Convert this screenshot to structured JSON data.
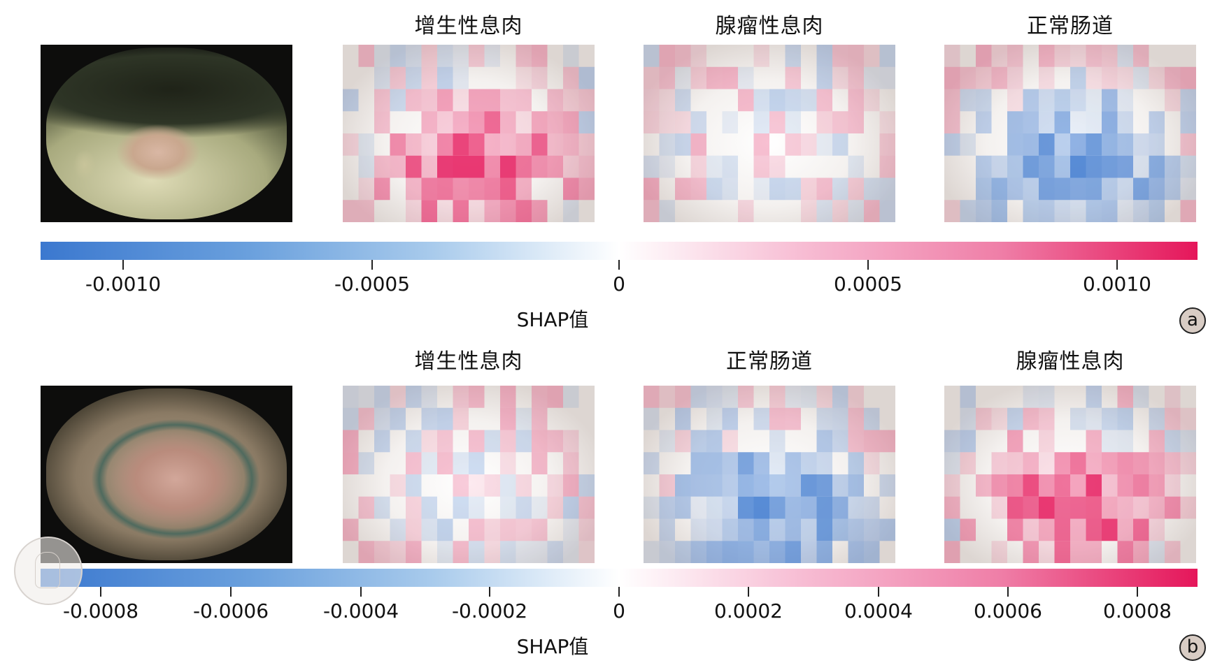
{
  "panel_a": {
    "titles": [
      "增生性息肉",
      "腺瘤性息肉",
      "正常肠道"
    ],
    "colorbar": {
      "ticks": [
        "-0.0010",
        "-0.0005",
        "0",
        "0.0005",
        "0.0010"
      ],
      "label": "SHAP值"
    },
    "badge": "a"
  },
  "panel_b": {
    "titles": [
      "增生性息肉",
      "正常肠道",
      "腺瘤性息肉"
    ],
    "colorbar": {
      "ticks": [
        "-0.0008",
        "-0.0006",
        "-0.0004",
        "-0.0002",
        "0",
        "0.0002",
        "0.0004",
        "0.0006",
        "0.0008"
      ],
      "label": "SHAP值"
    },
    "badge": "b"
  },
  "colors": {
    "negative": "#3b78cf",
    "neutral": "#ffffff",
    "positive": "#e5165a"
  },
  "icons": {
    "seal": "chinese-medical-association-seal-icon"
  }
}
